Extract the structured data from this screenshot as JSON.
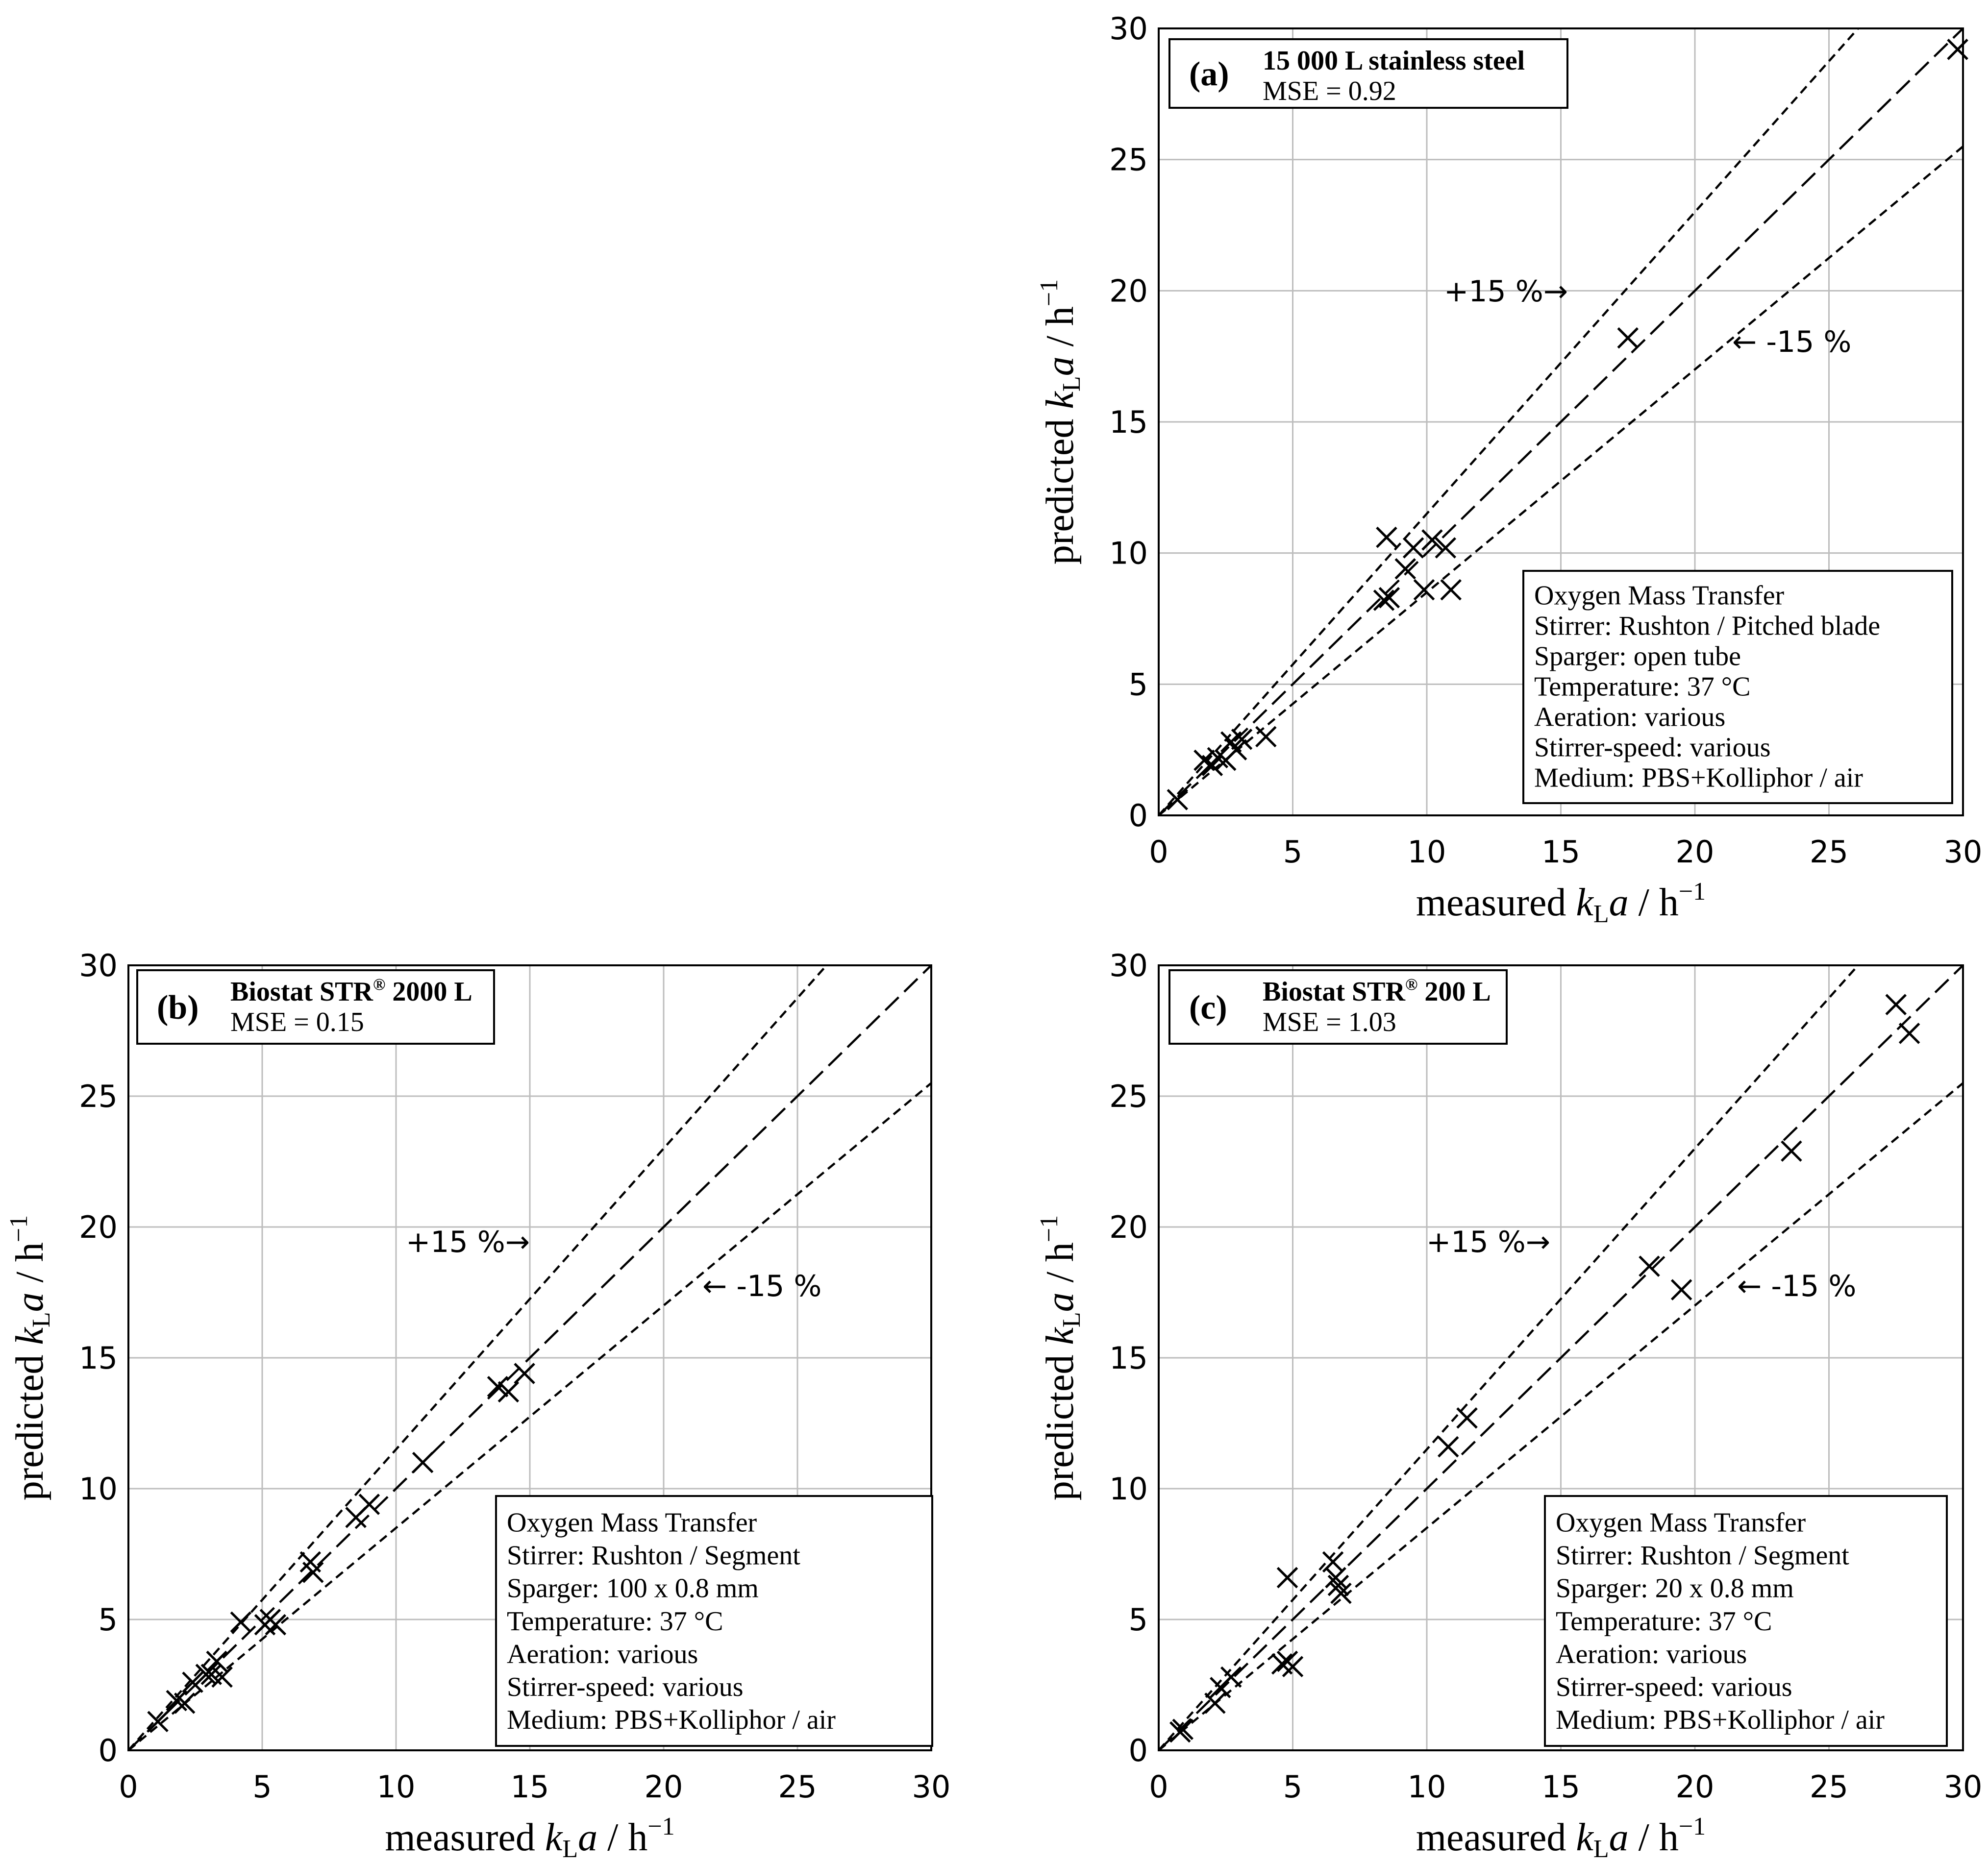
{
  "chart_data": [
    {
      "type": "scatter",
      "panel": "(a)",
      "title": "15 000 L stainless steel",
      "mse": "MSE = 0.92",
      "xlabel": "measured",
      "ylabel": "predicted",
      "var_main": "k",
      "var_sub": "L",
      "var_tail": "a",
      "unit": "/ h",
      "unit_exp": "−1",
      "xlim": [
        0,
        30
      ],
      "ylim": [
        0,
        30
      ],
      "xticks": [
        0,
        5,
        10,
        15,
        20,
        25,
        30
      ],
      "yticks": [
        0,
        5,
        10,
        15,
        20,
        25,
        30
      ],
      "grid": true,
      "reference_lines": [
        {
          "name": "identity",
          "slope": 1.0
        },
        {
          "name": "plus_15",
          "slope": 1.15,
          "label": "+15 %→"
        },
        {
          "name": "minus_15",
          "slope": 0.85,
          "label": "← -15 %"
        }
      ],
      "info_box": [
        "Oxygen Mass Transfer",
        "Stirrer: Rushton / Pitched blade",
        "Sparger: open tube",
        "Temperature: 37 °C",
        "Aeration: various",
        "Stirrer-speed: various",
        "Medium: PBS+Kolliphor / air"
      ],
      "points": [
        [
          0.7,
          0.6
        ],
        [
          1.7,
          2.1
        ],
        [
          2.0,
          1.9
        ],
        [
          2.2,
          2.2
        ],
        [
          2.5,
          2.1
        ],
        [
          2.7,
          2.8
        ],
        [
          2.9,
          2.5
        ],
        [
          3.1,
          2.9
        ],
        [
          4.0,
          3.0
        ],
        [
          8.4,
          8.2
        ],
        [
          8.6,
          8.3
        ],
        [
          8.5,
          10.6
        ],
        [
          9.2,
          9.4
        ],
        [
          9.5,
          10.2
        ],
        [
          9.9,
          8.6
        ],
        [
          10.2,
          10.5
        ],
        [
          10.7,
          10.2
        ],
        [
          10.9,
          8.6
        ],
        [
          17.5,
          18.2
        ],
        [
          29.8,
          29.2
        ]
      ]
    },
    {
      "type": "scatter",
      "panel": "(b)",
      "title": "Biostat STR",
      "title_reg": "®",
      "title_tail": " 2000 L",
      "mse": "MSE = 0.15",
      "xlabel": "measured",
      "ylabel": "predicted",
      "var_main": "k",
      "var_sub": "L",
      "var_tail": "a",
      "unit": "/ h",
      "unit_exp": "−1",
      "xlim": [
        0,
        30
      ],
      "ylim": [
        0,
        30
      ],
      "xticks": [
        0,
        5,
        10,
        15,
        20,
        25,
        30
      ],
      "yticks": [
        0,
        5,
        10,
        15,
        20,
        25,
        30
      ],
      "grid": true,
      "reference_lines": [
        {
          "name": "identity",
          "slope": 1.0
        },
        {
          "name": "plus_15",
          "slope": 1.15,
          "label": "+15 %→"
        },
        {
          "name": "minus_15",
          "slope": 0.85,
          "label": "← -15 %"
        }
      ],
      "info_box": [
        "Oxygen Mass Transfer",
        "Stirrer: Rushton / Segment",
        "Sparger: 100 x 0.8 mm",
        "Temperature: 37 °C",
        "Aeration: various",
        "Stirrer-speed: various",
        "Medium: PBS+Kolliphor / air"
      ],
      "points": [
        [
          1.1,
          1.1
        ],
        [
          1.8,
          1.9
        ],
        [
          2.1,
          1.8
        ],
        [
          2.4,
          2.6
        ],
        [
          2.9,
          2.9
        ],
        [
          3.1,
          2.9
        ],
        [
          3.3,
          3.4
        ],
        [
          3.5,
          2.8
        ],
        [
          4.2,
          4.9
        ],
        [
          5.1,
          4.8
        ],
        [
          5.3,
          5.0
        ],
        [
          5.5,
          4.8
        ],
        [
          6.8,
          7.2
        ],
        [
          6.9,
          6.8
        ],
        [
          8.5,
          8.9
        ],
        [
          9.0,
          9.4
        ],
        [
          11.0,
          11.0
        ],
        [
          13.8,
          13.9
        ],
        [
          14.2,
          13.7
        ],
        [
          14.8,
          14.4
        ]
      ]
    },
    {
      "type": "scatter",
      "panel": "(c)",
      "title": "Biostat STR",
      "title_reg": "®",
      "title_tail": " 200 L",
      "mse": "MSE = 1.03",
      "xlabel": "measured",
      "ylabel": "predicted",
      "var_main": "k",
      "var_sub": "L",
      "var_tail": "a",
      "unit": "/ h",
      "unit_exp": "−1",
      "xlim": [
        0,
        30
      ],
      "ylim": [
        0,
        30
      ],
      "xticks": [
        0,
        5,
        10,
        15,
        20,
        25,
        30
      ],
      "yticks": [
        0,
        5,
        10,
        15,
        20,
        25,
        30
      ],
      "grid": true,
      "reference_lines": [
        {
          "name": "identity",
          "slope": 1.0
        },
        {
          "name": "plus_15",
          "slope": 1.15,
          "label": "+15 %→"
        },
        {
          "name": "minus_15",
          "slope": 0.85,
          "label": "← -15 %"
        }
      ],
      "info_box": [
        "Oxygen Mass Transfer",
        "Stirrer: Rushton / Segment",
        "Sparger: 20 x 0.8 mm",
        "Temperature: 37 °C",
        "Aeration: various",
        "Stirrer-speed: various",
        "Medium: PBS+Kolliphor / air"
      ],
      "points": [
        [
          0.8,
          0.7
        ],
        [
          0.9,
          0.8
        ],
        [
          2.1,
          1.8
        ],
        [
          2.3,
          2.4
        ],
        [
          2.7,
          2.8
        ],
        [
          4.6,
          3.3
        ],
        [
          4.8,
          3.4
        ],
        [
          5.0,
          3.2
        ],
        [
          4.8,
          6.6
        ],
        [
          6.5,
          7.2
        ],
        [
          6.6,
          6.6
        ],
        [
          6.7,
          6.3
        ],
        [
          6.8,
          6.0
        ],
        [
          10.8,
          11.6
        ],
        [
          11.5,
          12.7
        ],
        [
          18.3,
          18.5
        ],
        [
          19.5,
          17.6
        ],
        [
          23.6,
          22.9
        ],
        [
          27.5,
          28.5
        ],
        [
          28.0,
          27.4
        ]
      ]
    }
  ]
}
